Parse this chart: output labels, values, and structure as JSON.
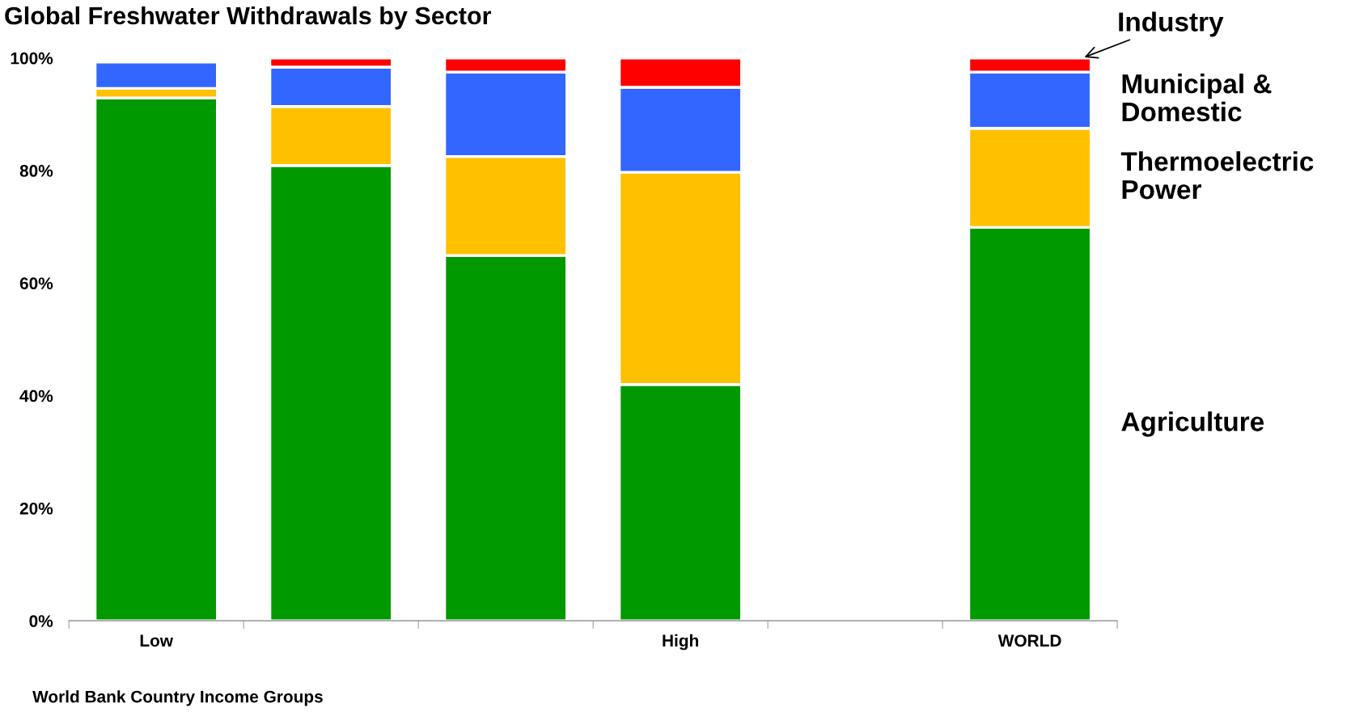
{
  "chart_data": {
    "type": "bar",
    "stacked": true,
    "title": "Global Freshwater Withdrawals by Sector",
    "xlabel": "World Bank Country Income Groups",
    "categories": [
      "Low",
      null,
      null,
      "High",
      null,
      "WORLD"
    ],
    "series": [
      {
        "name": "Agriculture",
        "color": "#009900",
        "values": [
          92.9,
          80.9,
          64.9,
          42.0,
          null,
          69.9
        ]
      },
      {
        "name": "Thermoelectric Power",
        "color": "#ffc000",
        "values": [
          1.7,
          10.5,
          17.6,
          37.7,
          null,
          17.6
        ]
      },
      {
        "name": "Municipal & Domestic",
        "color": "#3366ff",
        "values": [
          4.7,
          7.0,
          15.0,
          15.1,
          null,
          10.0
        ]
      },
      {
        "name": "Industry",
        "color": "#ff0000",
        "values": [
          null,
          1.6,
          2.5,
          5.2,
          null,
          2.5
        ]
      }
    ],
    "ylim": [
      0,
      100
    ],
    "yticks": [
      {
        "value": 0,
        "label": "0%"
      },
      {
        "value": 20,
        "label": "20%"
      },
      {
        "value": 40,
        "label": "40%"
      },
      {
        "value": 60,
        "label": "60%"
      },
      {
        "value": 80,
        "label": "80%"
      },
      {
        "value": 100,
        "label": "100%"
      }
    ],
    "grid": false,
    "legend": false
  }
}
